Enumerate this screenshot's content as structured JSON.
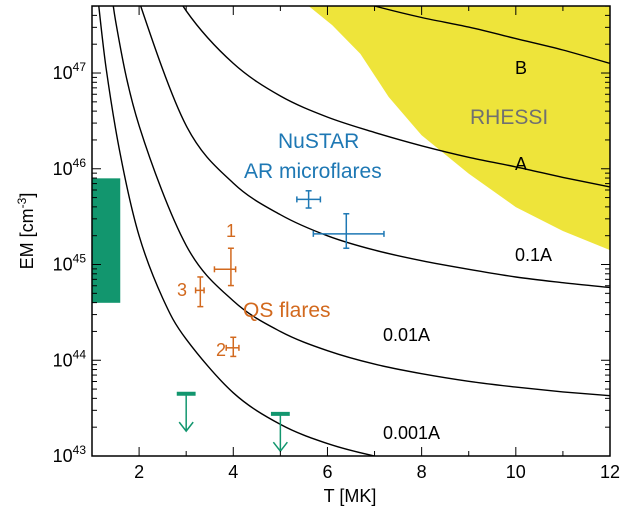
{
  "chart_data": {
    "type": "line",
    "title": "",
    "xlabel": "T [MK]",
    "ylabel_main": "EM [cm",
    "ylabel_sup": "-3",
    "ylabel_close": "]",
    "xlim": [
      1,
      12
    ],
    "ylim_log10": [
      43,
      47.7
    ],
    "y_scale": "log",
    "x_ticks": [
      2,
      4,
      6,
      8,
      10,
      12
    ],
    "x_tick_labels": [
      "2",
      "4",
      "6",
      "8",
      "10",
      "12"
    ],
    "y_ticks_log10": [
      43,
      44,
      45,
      46,
      47
    ],
    "y_tick_base": "10",
    "y_tick_exponents": [
      "43",
      "44",
      "45",
      "46",
      "47"
    ],
    "grid": false,
    "colors": {
      "rhessi_fill": "#EEE43A",
      "nustar": "#1E78B4",
      "qs": "#D2691E",
      "green": "#12966E",
      "curve": "#000000",
      "text_gray": "#707070"
    },
    "series": [
      {
        "label": "B",
        "points": [
          [
            3.0,
            48.52
          ],
          [
            4.0,
            48.22
          ],
          [
            5.0,
            48.0
          ],
          [
            6.0,
            47.84
          ],
          [
            7.0,
            47.7
          ],
          [
            8.0,
            47.58
          ],
          [
            9.0,
            47.48
          ],
          [
            10.0,
            47.36
          ],
          [
            11.0,
            47.24
          ],
          [
            12.0,
            47.1
          ]
        ]
      },
      {
        "label": "A",
        "points": [
          [
            2.0,
            48.5
          ],
          [
            3.0,
            47.65
          ],
          [
            4.0,
            47.1
          ],
          [
            5.0,
            46.76
          ],
          [
            6.0,
            46.54
          ],
          [
            7.0,
            46.38
          ],
          [
            8.0,
            46.24
          ],
          [
            9.0,
            46.12
          ],
          [
            10.0,
            46.02
          ],
          [
            11.0,
            45.91
          ],
          [
            12.0,
            45.81
          ]
        ]
      },
      {
        "label": "0.1A",
        "points": [
          [
            1.6,
            48.5
          ],
          [
            2.0,
            47.75
          ],
          [
            3.0,
            46.45
          ],
          [
            4.0,
            45.85
          ],
          [
            5.0,
            45.52
          ],
          [
            6.0,
            45.3
          ],
          [
            7.0,
            45.15
          ],
          [
            8.0,
            45.04
          ],
          [
            9.0,
            44.95
          ],
          [
            10.0,
            44.87
          ],
          [
            11.0,
            44.81
          ],
          [
            12.0,
            44.76
          ]
        ]
      },
      {
        "label": "0.01A",
        "points": [
          [
            1.3,
            48.4
          ],
          [
            1.5,
            47.55
          ],
          [
            2.0,
            46.45
          ],
          [
            3.0,
            45.2
          ],
          [
            4.0,
            44.62
          ],
          [
            5.0,
            44.3
          ],
          [
            6.0,
            44.1
          ],
          [
            7.0,
            43.96
          ],
          [
            8.0,
            43.86
          ],
          [
            9.0,
            43.78
          ],
          [
            10.0,
            43.72
          ],
          [
            11.0,
            43.67
          ],
          [
            12.0,
            43.63
          ]
        ]
      },
      {
        "label": "0.001A",
        "points": [
          [
            1.1,
            47.9
          ],
          [
            1.3,
            47.05
          ],
          [
            1.6,
            46.15
          ],
          [
            2.0,
            45.3
          ],
          [
            2.5,
            44.65
          ],
          [
            3.0,
            44.22
          ],
          [
            4.0,
            43.66
          ],
          [
            5.0,
            43.33
          ],
          [
            6.0,
            43.13
          ],
          [
            7.0,
            43.0
          ],
          [
            8.0,
            42.92
          ],
          [
            9.0,
            42.86
          ]
        ]
      }
    ],
    "rhessi_region": {
      "label": "RHESSI",
      "polygon": [
        [
          5.6,
          47.7
        ],
        [
          12.0,
          47.7
        ],
        [
          12.0,
          45.15
        ],
        [
          11.0,
          45.35
        ],
        [
          10.0,
          45.6
        ],
        [
          9.0,
          45.95
        ],
        [
          8.0,
          46.35
        ],
        [
          7.3,
          46.75
        ],
        [
          6.7,
          47.2
        ],
        [
          6.1,
          47.5
        ]
      ]
    },
    "nustar_points": {
      "label_line1": "NuSTAR",
      "label_line2": "AR microflares",
      "points": [
        {
          "x": 5.6,
          "y": 45.68,
          "x_err": [
            5.35,
            5.85
          ],
          "y_err": [
            45.59,
            45.77
          ]
        },
        {
          "x": 6.4,
          "y": 45.32,
          "x_err": [
            5.7,
            7.2
          ],
          "y_err": [
            45.17,
            45.53
          ]
        }
      ]
    },
    "qs_points": {
      "label": "QS flares",
      "points": [
        {
          "x": 3.95,
          "y": 44.95,
          "x_err": [
            3.6,
            4.05
          ],
          "y_err": [
            44.78,
            45.17
          ],
          "label": "1"
        },
        {
          "x": 3.3,
          "y": 44.73,
          "x_err": [
            3.2,
            3.38
          ],
          "y_err": [
            44.56,
            44.87
          ],
          "label": "3"
        },
        {
          "x": 4.0,
          "y": 44.13,
          "x_err": [
            3.85,
            4.12
          ],
          "y_err": [
            44.04,
            44.24
          ],
          "label": "2"
        }
      ]
    },
    "green_band": {
      "x": [
        1.0,
        1.6
      ],
      "y": [
        44.6,
        45.9
      ]
    },
    "green_upper_limits": [
      {
        "x": 3.0,
        "x_bar": [
          2.8,
          3.2
        ],
        "y": 43.65,
        "arrow_to": 43.26
      },
      {
        "x": 5.0,
        "x_bar": [
          4.8,
          5.2
        ],
        "y": 43.44,
        "arrow_to": 43.05
      }
    ]
  }
}
